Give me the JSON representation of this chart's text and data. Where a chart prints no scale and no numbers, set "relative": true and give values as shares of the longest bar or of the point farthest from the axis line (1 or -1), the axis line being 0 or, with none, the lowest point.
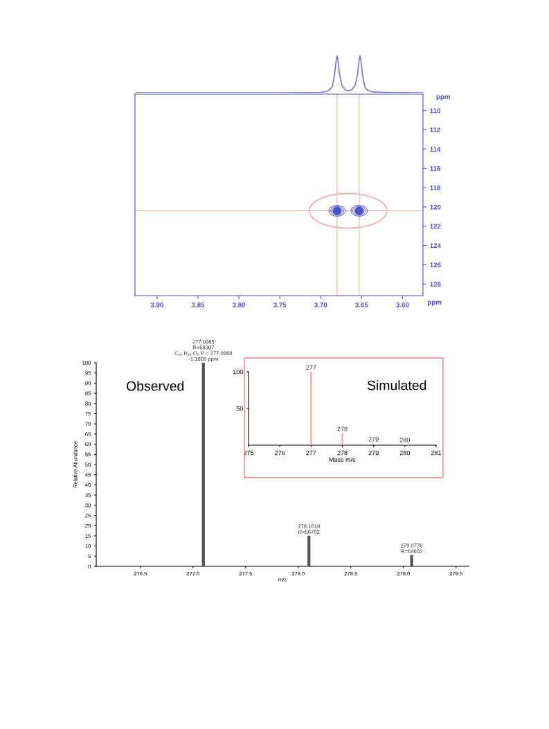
{
  "chart_data": [
    {
      "type": "line",
      "relative": true,
      "series": [
        {
          "color": "#6e78e0",
          "x": [
            3.927,
            3.75,
            3.7,
            3.692,
            3.686,
            3.683,
            3.681,
            3.68,
            3.679,
            3.677,
            3.674,
            3.67,
            3.666,
            3.662,
            3.658,
            3.655,
            3.653,
            3.652,
            3.651,
            3.649,
            3.646,
            3.642,
            3.635,
            3.62,
            3.575
          ],
          "values": [
            0,
            0,
            0.01,
            0.04,
            0.15,
            0.5,
            0.9,
            1,
            0.9,
            0.5,
            0.2,
            0.08,
            0.05,
            0.08,
            0.2,
            0.5,
            0.9,
            1,
            0.9,
            0.5,
            0.15,
            0.06,
            0.02,
            0.01,
            0
          ]
        }
      ],
      "xlim": [
        3.927,
        3.575
      ]
    },
    {
      "type": "scatter",
      "xlabel": "ppm",
      "ylabel": "ppm",
      "x": [
        3.68,
        3.653
      ],
      "values": [
        120.4,
        120.4
      ],
      "color": "#4a50d0",
      "marker": "circle",
      "xlim": [
        3.927,
        3.575
      ],
      "ylim": [
        129.2,
        108.3
      ],
      "xticks": [
        {
          "value": 3.9,
          "label": "3.90"
        },
        {
          "value": 3.85,
          "label": "3.85"
        },
        {
          "value": 3.8,
          "label": "3.80"
        },
        {
          "value": 3.75,
          "label": "3.75"
        },
        {
          "value": 3.7,
          "label": "3.70"
        },
        {
          "value": 3.65,
          "label": "3.65"
        },
        {
          "value": 3.6,
          "label": "3.60"
        }
      ],
      "yticks": [
        110,
        112,
        114,
        116,
        118,
        120,
        122,
        124,
        126,
        128
      ],
      "ref_lines": [
        {
          "axis": "x",
          "value": 3.68,
          "color": "#f4a8a0"
        },
        {
          "axis": "x",
          "value": 3.653,
          "color": "#f4a8a0"
        },
        {
          "axis": "y",
          "value": 120.4,
          "color": "#f4a8a0"
        }
      ]
    },
    {
      "type": "bar",
      "xlabel": "m/z",
      "ylabel": "Relative Abundance",
      "x": [
        277.0985,
        278.1018,
        279.0778
      ],
      "values": [
        100,
        15,
        5.5
      ],
      "color": "#555555",
      "xlim": [
        276.08,
        279.62
      ],
      "ylim": [
        0,
        100
      ],
      "xticks": [
        276.5,
        {
          "value": 277,
          "label": "277.0"
        },
        277.5,
        {
          "value": 278,
          "label": "278.0"
        },
        278.5,
        {
          "value": 279,
          "label": "279.0"
        },
        279.5
      ],
      "yticks": [
        0,
        5,
        10,
        15,
        20,
        25,
        30,
        35,
        40,
        45,
        50,
        55,
        60,
        65,
        70,
        75,
        80,
        85,
        90,
        95,
        100
      ],
      "annotations": [
        "Observed",
        {
          "text": "277.0985\nR=68307\nC₁₅ H₁₈ O₃ P = 277.0988\n-1.1809 ppm",
          "x": 277.0985,
          "y": 100
        },
        {
          "text": "278.1018\nR=56702",
          "x": 278.1018,
          "y": 15
        },
        {
          "text": "279.0778\nR=64602",
          "x": 279.0778,
          "y": 5.5
        }
      ]
    },
    {
      "type": "bar",
      "xlabel": "Mass m/e",
      "x": [
        277,
        278,
        279,
        280
      ],
      "values": [
        100,
        16,
        2,
        1
      ],
      "color": "#f4a0a0",
      "xlim": [
        275,
        281
      ],
      "ylim": [
        0,
        100
      ],
      "xticks": [
        275,
        276,
        277,
        278,
        279,
        280,
        281
      ],
      "yticks": [
        50,
        100
      ],
      "annotations": [
        "Simulated",
        {
          "text": "277",
          "x": 277,
          "y": 100
        },
        {
          "text": "278",
          "x": 278,
          "y": 16
        },
        {
          "text": "279",
          "x": 279,
          "y": 2
        },
        {
          "text": "280",
          "x": 280,
          "y": 1
        }
      ]
    }
  ]
}
